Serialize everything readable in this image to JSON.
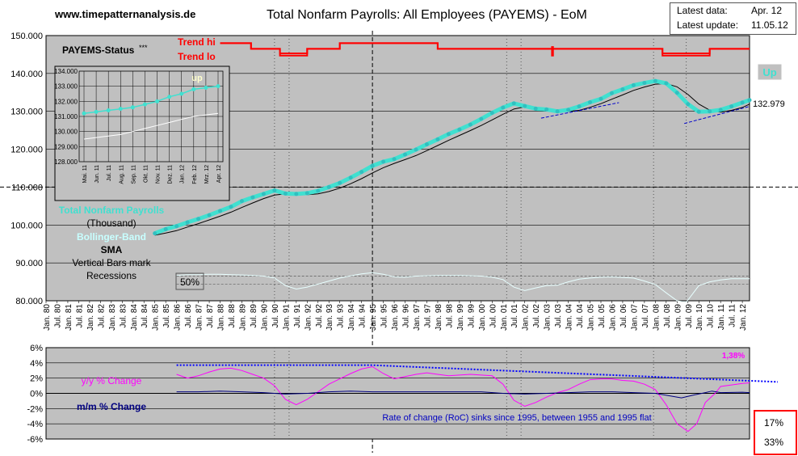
{
  "header": {
    "site": "www.timepatternanalysis.de",
    "title": "Total Nonfarm Payrolls: All Employees (PAYEMS) - EoM",
    "latest_data_label": "Latest data:",
    "latest_data_value": "Apr. 12",
    "latest_update_label": "Latest update:",
    "latest_update_value": "11.05.12"
  },
  "colors": {
    "panel_bg": "#c0c0c0",
    "price": "#40e0d0",
    "sma": "#000000",
    "trend": "#ff0000",
    "yoy": "#ff00ff",
    "mom": "#000080",
    "roc_trend": "#0000ff",
    "annotation_text": "#0000c0",
    "percent_box_border": "#ff0000"
  },
  "chart_data": [
    {
      "type": "line",
      "name": "main",
      "ylim": [
        80000,
        150000
      ],
      "yticks": [
        "150.000",
        "140.000",
        "130.000",
        "120.000",
        "110.000",
        "100.000",
        "90.000",
        "80.000"
      ],
      "x_start": 1980.0,
      "x_end": 2012.33,
      "xtick_labels": [
        "Jan. 80",
        "Jul. 80",
        "Jan. 81",
        "Jul. 81",
        "Jan. 82",
        "Jul. 82",
        "Jan. 83",
        "Jul. 83",
        "Jan. 84",
        "Jul. 84",
        "Jan. 85",
        "Jul. 85",
        "Jan. 86",
        "Jul. 86",
        "Jan. 87",
        "Jul. 87",
        "Jan. 88",
        "Jul. 88",
        "Jan. 89",
        "Jul. 89",
        "Jan. 90",
        "Jul. 90",
        "Jan. 91",
        "Jul. 91",
        "Jan. 92",
        "Jul. 92",
        "Jan. 93",
        "Jul. 93",
        "Jan. 94",
        "Jul. 94",
        "Jan. 95",
        "Jul. 95",
        "Jan. 96",
        "Jul. 96",
        "Jan. 97",
        "Jul. 97",
        "Jan. 98",
        "Jul. 98",
        "Jan. 99",
        "Jul. 99",
        "Jan. 00",
        "Jul. 00",
        "Jan. 01",
        "Jul. 01",
        "Jan. 02",
        "Jul. 02",
        "Jan. 03",
        "Jul. 03",
        "Jan. 04",
        "Jul. 04",
        "Jan. 05",
        "Jul. 05",
        "Jan. 06",
        "Jul. 06",
        "Jan. 07",
        "Jul. 07",
        "Jan. 08",
        "Jul. 08",
        "Jan. 09",
        "Jul. 09",
        "Jan. 10",
        "Jul. 10",
        "Jan. 11",
        "Jul. 11",
        "Jan. 12"
      ],
      "status_label": "PAYEMS-Status",
      "status_stars": "***",
      "trend_hi_label": "Trend hi",
      "trend_lo_label": "Trend lo",
      "up_badge": "Up",
      "last_value_label": "132.979",
      "legend": {
        "series_name": "Total Nonfarm Payrolls",
        "unit": "(Thousand)",
        "bollinger": "Bollinger-Band",
        "sma": "SMA",
        "recession_note1": "Vertical Bars mark",
        "recession_note2": "Recessions"
      },
      "fifty_label": "50%",
      "reference_line": 110000,
      "recession_lines": [
        1990.5,
        1991.17,
        2001.17,
        2001.83,
        2007.92,
        2009.42
      ],
      "current_year_line": 1995.0,
      "payroll": {
        "x": [
          1985.0,
          1985.5,
          1986.0,
          1986.5,
          1987.0,
          1987.5,
          1988.0,
          1988.5,
          1989.0,
          1989.5,
          1990.0,
          1990.5,
          1991.0,
          1991.5,
          1992.0,
          1992.5,
          1993.0,
          1993.5,
          1994.0,
          1994.5,
          1995.0,
          1995.5,
          1996.0,
          1996.5,
          1997.0,
          1997.5,
          1998.0,
          1998.5,
          1999.0,
          1999.5,
          2000.0,
          2000.5,
          2001.0,
          2001.5,
          2002.0,
          2002.5,
          2003.0,
          2003.5,
          2004.0,
          2004.5,
          2005.0,
          2005.5,
          2006.0,
          2006.5,
          2007.0,
          2007.5,
          2008.0,
          2008.5,
          2009.0,
          2009.5,
          2010.0,
          2010.5,
          2011.0,
          2011.5,
          2012.0,
          2012.33
        ],
        "y": [
          97800,
          98900,
          99700,
          100700,
          101600,
          102600,
          103700,
          104800,
          106300,
          107300,
          108200,
          109100,
          108300,
          108200,
          108400,
          109000,
          110000,
          111100,
          112500,
          114000,
          115600,
          116700,
          117400,
          118600,
          119900,
          121300,
          122600,
          124000,
          125200,
          126500,
          128000,
          129600,
          131000,
          132100,
          131400,
          130700,
          130500,
          130000,
          130400,
          131300,
          132400,
          133300,
          134800,
          135800,
          136900,
          137500,
          138000,
          137400,
          134900,
          131900,
          129900,
          130000,
          130400,
          131300,
          132300,
          132979
        ]
      },
      "trend_hi": {
        "x": [
          1988.0,
          1989.42,
          1989.42,
          1990.75,
          1990.75,
          1992.0,
          1992.0,
          1993.5,
          1993.5,
          1998.0,
          1998.0,
          2003.25,
          2003.25,
          2003.3,
          2003.3,
          2008.33,
          2008.33,
          2010.5,
          2010.5,
          2012.33
        ],
        "y": [
          148000,
          148000,
          146500,
          146500,
          145300,
          145300,
          146500,
          146500,
          148000,
          148000,
          146500,
          146500,
          147000,
          147000,
          146500,
          146500,
          145300,
          145300,
          146500,
          146500
        ]
      },
      "trend_lo": {
        "x": [
          1988.0,
          1989.42,
          1989.42,
          1990.75,
          1990.75,
          1992.0,
          1992.0,
          1993.5,
          1993.5,
          1998.0,
          1998.0,
          2003.25,
          2003.25,
          2003.3,
          2003.3,
          2008.33,
          2008.33,
          2010.5,
          2010.5,
          2012.33
        ],
        "y": [
          148000,
          148000,
          146500,
          146500,
          144700,
          144700,
          146500,
          146500,
          148000,
          148000,
          146500,
          146500,
          144700,
          144700,
          146500,
          146500,
          144700,
          144700,
          146500,
          146500
        ]
      },
      "support_lines": [
        {
          "x": [
            2002.75,
            2006.33
          ],
          "y": [
            128200,
            132300
          ]
        },
        {
          "x": [
            2009.33,
            2012.33
          ],
          "y": [
            126800,
            131300
          ]
        }
      ],
      "oscillator": {
        "x": [
          1986.0,
          1986.5,
          1987.0,
          1987.5,
          1988.0,
          1988.5,
          1989.0,
          1989.5,
          1990.0,
          1990.5,
          1991.0,
          1991.5,
          1992.0,
          1992.5,
          1993.0,
          1993.5,
          1994.0,
          1994.5,
          1995.0,
          1995.5,
          1996.0,
          1996.5,
          1997.0,
          1998.0,
          1999.0,
          2000.0,
          2000.5,
          2001.0,
          2001.5,
          2002.0,
          2002.5,
          2003.0,
          2003.5,
          2004.0,
          2004.5,
          2005.0,
          2005.5,
          2006.0,
          2007.0,
          2007.5,
          2008.0,
          2008.5,
          2009.0,
          2009.42,
          2009.75,
          2010.0,
          2010.5,
          2011.0,
          2011.5,
          2012.0,
          2012.33
        ],
        "y": [
          86700,
          86900,
          86900,
          87000,
          87000,
          86900,
          86800,
          86700,
          86500,
          86000,
          84000,
          83100,
          83600,
          84400,
          85200,
          86000,
          86600,
          87100,
          87400,
          87000,
          86300,
          86200,
          86500,
          86700,
          86700,
          86500,
          86200,
          85600,
          83600,
          82700,
          83400,
          84000,
          84100,
          85000,
          85700,
          86000,
          86200,
          86300,
          86000,
          85200,
          84300,
          82100,
          80000,
          79600,
          82100,
          84000,
          85000,
          85500,
          85800,
          85800,
          85800
        ]
      },
      "inset": {
        "ylim": [
          128000,
          134000
        ],
        "yticks": [
          "134.000",
          "133.000",
          "132.000",
          "131.000",
          "130.000",
          "129.000",
          "128.000"
        ],
        "xlabels": [
          "Mai. 11",
          "Jun. 11",
          "Jul. 11",
          "Aug. 11",
          "Sep. 11",
          "Okt. 11",
          "Nov. 11",
          "Dez. 11",
          "Jan. 12",
          "Feb. 12",
          "Mrz. 12",
          "Apr. 12"
        ],
        "up_label": "up",
        "payroll": [
          131200,
          131300,
          131400,
          131500,
          131600,
          131800,
          132000,
          132300,
          132500,
          132800,
          132900,
          133000
        ],
        "sma": [
          129500,
          129600,
          129700,
          129800,
          130000,
          130200,
          130400,
          130600,
          130800,
          131000,
          131100,
          131200
        ]
      }
    },
    {
      "type": "line",
      "name": "rate_of_change",
      "ylim": [
        -6,
        6
      ],
      "yticks": [
        "6%",
        "4%",
        "2%",
        "0%",
        "-2%",
        "-4%",
        "-6%"
      ],
      "yoy_label": "y/y % Change",
      "mom_label": "m/m % Change",
      "yoy_value_label": "1,38%",
      "note": "Rate of change (RoC) sinks since 1995, between 1955 and 1995 flat",
      "percent_boxes": [
        "17%",
        "33%"
      ],
      "yoy": {
        "x": [
          1986.0,
          1986.5,
          1987.0,
          1987.5,
          1988.0,
          1988.5,
          1989.0,
          1989.5,
          1990.0,
          1990.5,
          1991.0,
          1991.5,
          1992.0,
          1992.5,
          1993.0,
          1993.5,
          1994.0,
          1994.5,
          1995.0,
          1995.5,
          1996.0,
          1996.5,
          1997.0,
          1997.5,
          1998.0,
          1998.5,
          1999.0,
          1999.5,
          2000.0,
          2000.5,
          2001.0,
          2001.5,
          2002.0,
          2002.5,
          2003.0,
          2003.5,
          2004.0,
          2004.5,
          2005.0,
          2005.5,
          2006.0,
          2006.5,
          2007.0,
          2007.5,
          2008.0,
          2008.5,
          2009.0,
          2009.5,
          2009.9,
          2010.3,
          2010.75,
          2011.0,
          2011.5,
          2012.0,
          2012.33
        ],
        "y": [
          2.5,
          2.0,
          2.3,
          2.8,
          3.2,
          3.3,
          3.0,
          2.5,
          2.0,
          1.0,
          -0.8,
          -1.5,
          -0.8,
          0.2,
          1.2,
          1.9,
          2.6,
          3.2,
          3.5,
          2.6,
          1.9,
          2.2,
          2.5,
          2.7,
          2.5,
          2.3,
          2.4,
          2.5,
          2.4,
          2.3,
          1.2,
          -0.9,
          -1.7,
          -1.2,
          -0.5,
          0.1,
          0.5,
          1.2,
          1.8,
          1.9,
          1.9,
          1.7,
          1.6,
          1.2,
          0.5,
          -1.5,
          -4.0,
          -5.0,
          -4.0,
          -1.2,
          0.0,
          0.9,
          1.1,
          1.3,
          1.38
        ]
      },
      "mom": {
        "x": [
          1986.0,
          1987.0,
          1988.0,
          1989.0,
          1990.0,
          1991.0,
          1992.0,
          1993.0,
          1994.0,
          1995.0,
          1996.0,
          1997.0,
          1998.0,
          1999.0,
          2000.0,
          2001.0,
          2002.0,
          2003.0,
          2004.0,
          2005.0,
          2006.0,
          2007.0,
          2008.0,
          2008.8,
          2009.2,
          2009.8,
          2010.3,
          2010.6,
          2011.0,
          2012.0,
          2012.33
        ],
        "y": [
          0.2,
          0.2,
          0.3,
          0.2,
          0.1,
          -0.1,
          0.0,
          0.2,
          0.3,
          0.2,
          0.2,
          0.2,
          0.2,
          0.2,
          0.2,
          0.0,
          -0.1,
          0.0,
          0.1,
          0.2,
          0.2,
          0.1,
          0.0,
          -0.4,
          -0.6,
          -0.2,
          0.1,
          0.3,
          0.1,
          0.15,
          0.1
        ]
      },
      "roc_trend": {
        "x": [
          1986.0,
          1995.0,
          2012.33
        ],
        "y": [
          3.7,
          3.7,
          1.5
        ]
      }
    }
  ]
}
